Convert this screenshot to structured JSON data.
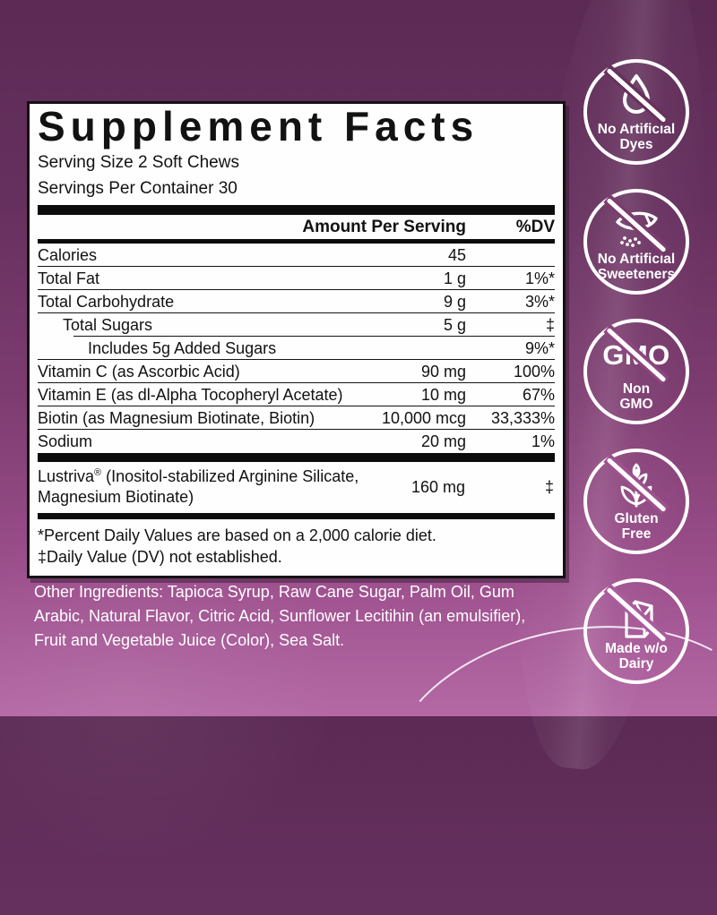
{
  "colors": {
    "background_top": "#5c2a55",
    "background_bottom": "#b369a4",
    "panel_background": "#ffffff",
    "panel_border": "#111111",
    "panel_text": "#121212",
    "badge_and_other_text": "#ffffff"
  },
  "panel": {
    "title": "Supplement Facts",
    "serving_lines": [
      "Serving Size 2 Soft Chews",
      "Servings Per Container 30"
    ],
    "header": {
      "amount": "Amount Per Serving",
      "dv": "%DV"
    },
    "rows": [
      {
        "label": "Calories",
        "amount": "45",
        "dv": "",
        "indent": 0
      },
      {
        "label": "Total Fat",
        "amount": "1 g",
        "dv": "1%*",
        "indent": 0
      },
      {
        "label": "Total Carbohydrate",
        "amount": "9 g",
        "dv": "3%*",
        "indent": 0
      },
      {
        "label": "Total Sugars",
        "amount": "5 g",
        "dv": "‡",
        "indent": 1
      },
      {
        "label": "Includes 5g Added Sugars",
        "amount": "",
        "dv": "9%*",
        "indent": 2
      },
      {
        "label": "Vitamin C (as Ascorbic Acid)",
        "amount": "90 mg",
        "dv": "100%",
        "indent": 0
      },
      {
        "label": "Vitamin E (as dl-Alpha Tocopheryl Acetate)",
        "amount": "10 mg",
        "dv": "67%",
        "indent": 0
      },
      {
        "label": "Biotin (as Magnesium Biotinate, Biotin)",
        "amount": "10,000 mcg",
        "dv": "33,333%",
        "indent": 0
      },
      {
        "label": "Sodium",
        "amount": "20 mg",
        "dv": "1%",
        "indent": 0
      }
    ],
    "extra_row": {
      "label": "Lustriva® (Inositol-stabilized Arginine Silicate, Magnesium Biotinate)",
      "amount": "160 mg",
      "dv": "‡"
    },
    "footnotes": [
      "*Percent Daily Values are based on a 2,000 calorie diet.",
      "‡Daily Value (DV) not established."
    ]
  },
  "other_ingredients": "Other Ingredients: Tapioca Syrup, Raw Cane Sugar, Palm Oil, Gum Arabic, Natural Flavor, Citric Acid, Sunflower Lecitihin (an emulsifier), Fruit and Vegetable Juice (Color), Sea Salt.",
  "badges": [
    {
      "name": "no-artificial-dyes",
      "icon": "drop-icon",
      "lines": [
        "No Artificial",
        "Dyes"
      ]
    },
    {
      "name": "no-artificial-sweeteners",
      "icon": "sweetener-packet-icon",
      "lines": [
        "No Artificial",
        "Sweeteners"
      ]
    },
    {
      "name": "non-gmo",
      "icon": "gmo-crossed-icon",
      "icon_text": "GMO",
      "lines": [
        "Non",
        "GMO"
      ]
    },
    {
      "name": "gluten-free",
      "icon": "wheat-icon",
      "lines": [
        "Gluten",
        "Free"
      ]
    },
    {
      "name": "made-without-dairy",
      "icon": "milk-carton-icon",
      "lines": [
        "Made w/o",
        "Dairy"
      ]
    }
  ]
}
